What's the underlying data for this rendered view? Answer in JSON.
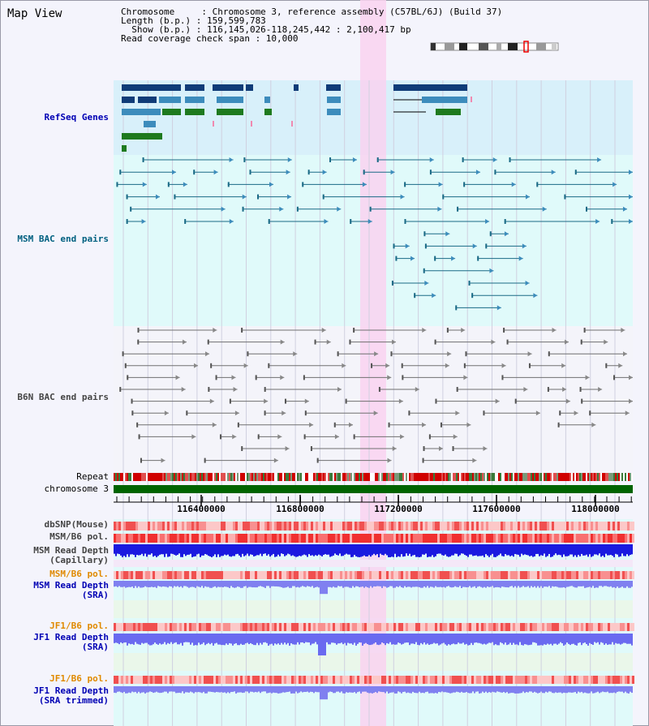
{
  "header": {
    "title": "Map View",
    "info_lines": [
      "Chromosome     : Chromosome 3, reference assembly (C57BL/6J) (Build 37)",
      "Length (b.p.) : 159,599,783",
      "  Show (b.p.) : 116,145,026-118,245,442 : 2,100,417 bp",
      "Read coverage check span : 10,000"
    ]
  },
  "tracks": {
    "refseq": "RefSeq Genes",
    "msm_bac": "MSM BAC end pairs",
    "b6n_bac": "B6N BAC end pairs",
    "repeat": "Repeat",
    "chromosome": "chromosome 3",
    "dbsnp": "dbSNP(Mouse)",
    "msm_b6_pol": "MSM/B6 pol.",
    "msm_depth_cap_1": "MSM Read Depth",
    "msm_depth_cap_2": "(Capillary)",
    "msm_b6_pol_2": "MSM/B6 pol.",
    "msm_depth_sra_1": "MSM Read Depth",
    "msm_depth_sra_2": "(SRA)",
    "jf1_b6_pol": "JF1/B6 pol.",
    "jf1_depth_sra_1": "JF1 Read Depth",
    "jf1_depth_sra_2": "(SRA)",
    "jf1_b6_pol_2": "JF1/B6 pol.",
    "jf1_depth_trim_1": "JF1 Read Depth",
    "jf1_depth_trim_2": "(SRA trimmed)"
  },
  "axis": {
    "ticks": [
      "116400000",
      "116800000",
      "117200000",
      "117600000",
      "118000000"
    ]
  },
  "colors": {
    "highlight": "#f9d2f0",
    "refseq_bg": "#d8f0fa",
    "bac_bg": "#e0fafa",
    "gene_dark": "#103c78",
    "gene_mid": "#3c8cbc",
    "gene_green": "#1e7a1e",
    "msm_line": "#1a6a86",
    "b6n_line": "#707070",
    "depth": "#4040e0",
    "chromosome": "#006400"
  }
}
